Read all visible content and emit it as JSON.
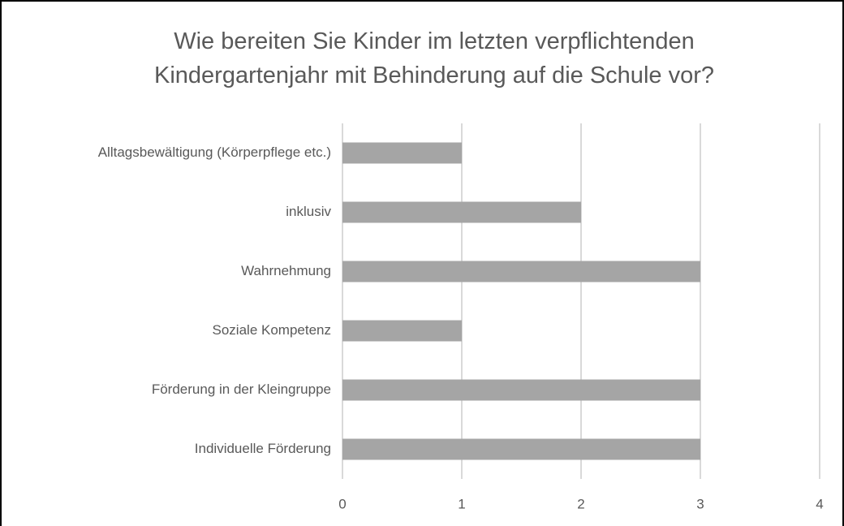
{
  "chart_data": {
    "type": "hbar",
    "title": "Wie bereiten Sie Kinder im letzten verpflichtenden Kindergartenjahr mit Behinderung auf die Schule vor?",
    "categories": [
      "Alltagsbewältigung (Körperpflege etc.)",
      "inklusiv",
      "Wahrnehmung",
      "Soziale Kompetenz",
      "Förderung in der Kleingruppe",
      "Individuelle Förderung"
    ],
    "values": [
      1,
      2,
      3,
      1,
      3,
      3
    ],
    "color": "#a5a5a5",
    "xlim": [
      0,
      4
    ],
    "xticks": [
      0,
      1,
      2,
      3,
      4
    ],
    "grid": true
  }
}
